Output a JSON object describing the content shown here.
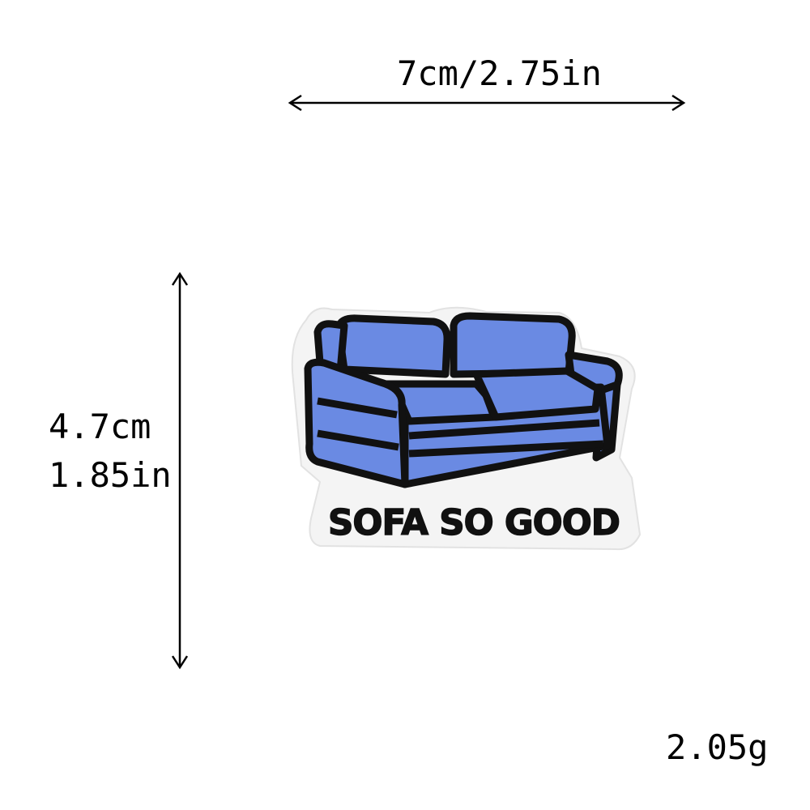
{
  "dimensions": {
    "width_label": "7cm/2.75in",
    "height_cm_label": "4.7cm",
    "height_in_label": "1.85in",
    "weight_label": "2.05g"
  },
  "patch": {
    "embroidered_text": "SOFA SO GOOD",
    "icon": "sofa-icon",
    "colors": {
      "sofa_blue": "#6a8ae3",
      "outline": "#111111",
      "backing": "#f4f4f4"
    }
  }
}
